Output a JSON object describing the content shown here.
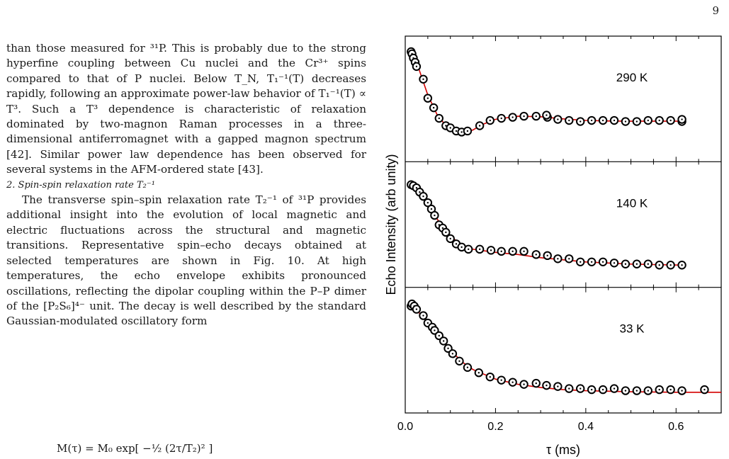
{
  "page": {
    "number": "9"
  },
  "text": {
    "para1": "than those measured for ³¹P. This is probably due to the strong hyperfine coupling between Cu nuclei and the Cr³⁺ spins compared to that of P nuclei. Below T_N, T₁⁻¹(T) decreases rapidly, following an approximate power-law behavior of T₁⁻¹(T) ∝ T³. Such a T³ dependence is characteristic of relaxation dominated by two-magnon Raman processes in a three-dimensional antiferromagnet with a gapped magnon spectrum [42]. Similar power law dependence has been observed for several systems in the AFM-ordered state [43].",
    "heading": "2.  Spin-spin relaxation rate T₂⁻¹",
    "para2": "The transverse spin–spin relaxation rate T₂⁻¹ of ³¹P provides additional insight into the evolution of local magnetic and electric fluctuations across the structural and magnetic transitions. Representative spin–echo decays obtained at selected temperatures are shown in Fig. 10. At high temperatures, the echo envelope exhibits pronounced oscillations, reflecting the dipolar coupling within the P–P dimer of the [P₂S₆]⁴⁻ unit. The decay is well described by the standard Gaussian-modulated oscillatory form",
    "equation_fragment": "M(τ) = M₀ exp[ −½ (2τ/T₂)² ]"
  },
  "chart_data": {
    "type": "scatter",
    "xlabel": "τ (ms)",
    "ylabel": "Echo Intensity (arb unity)",
    "xlim": [
      0,
      0.7
    ],
    "x_ticks": [
      "0.0",
      "0.2",
      "0.4",
      "0.6"
    ],
    "grid": false,
    "panels": [
      {
        "label": "290 K",
        "ylim": [
          0,
          1
        ],
        "points": [
          [
            0.013,
            0.96
          ],
          [
            0.015,
            0.94
          ],
          [
            0.018,
            0.9
          ],
          [
            0.022,
            0.86
          ],
          [
            0.025,
            0.82
          ],
          [
            0.04,
            0.7
          ],
          [
            0.05,
            0.52
          ],
          [
            0.063,
            0.43
          ],
          [
            0.075,
            0.33
          ],
          [
            0.09,
            0.26
          ],
          [
            0.1,
            0.24
          ],
          [
            0.113,
            0.21
          ],
          [
            0.125,
            0.2
          ],
          [
            0.138,
            0.21
          ],
          [
            0.165,
            0.26
          ],
          [
            0.188,
            0.31
          ],
          [
            0.213,
            0.33
          ],
          [
            0.238,
            0.34
          ],
          [
            0.263,
            0.35
          ],
          [
            0.29,
            0.35
          ],
          [
            0.315,
            0.34
          ],
          [
            0.313,
            0.36
          ],
          [
            0.338,
            0.32
          ],
          [
            0.363,
            0.31
          ],
          [
            0.388,
            0.3
          ],
          [
            0.413,
            0.31
          ],
          [
            0.438,
            0.31
          ],
          [
            0.463,
            0.31
          ],
          [
            0.488,
            0.3
          ],
          [
            0.513,
            0.3
          ],
          [
            0.538,
            0.31
          ],
          [
            0.563,
            0.31
          ],
          [
            0.588,
            0.31
          ],
          [
            0.613,
            0.3
          ],
          [
            0.613,
            0.32
          ]
        ],
        "fit": [
          [
            0.01,
            0.97
          ],
          [
            0.03,
            0.8
          ],
          [
            0.05,
            0.55
          ],
          [
            0.07,
            0.37
          ],
          [
            0.09,
            0.26
          ],
          [
            0.11,
            0.21
          ],
          [
            0.13,
            0.2
          ],
          [
            0.15,
            0.22
          ],
          [
            0.17,
            0.27
          ],
          [
            0.2,
            0.32
          ],
          [
            0.25,
            0.35
          ],
          [
            0.3,
            0.345
          ],
          [
            0.35,
            0.325
          ],
          [
            0.4,
            0.31
          ],
          [
            0.45,
            0.305
          ],
          [
            0.5,
            0.303
          ],
          [
            0.55,
            0.303
          ],
          [
            0.615,
            0.303
          ]
        ]
      },
      {
        "label": "140 K",
        "ylim": [
          0,
          1
        ],
        "points": [
          [
            0.013,
            0.89
          ],
          [
            0.018,
            0.88
          ],
          [
            0.025,
            0.86
          ],
          [
            0.032,
            0.82
          ],
          [
            0.04,
            0.78
          ],
          [
            0.05,
            0.72
          ],
          [
            0.058,
            0.66
          ],
          [
            0.065,
            0.6
          ],
          [
            0.075,
            0.51
          ],
          [
            0.083,
            0.48
          ],
          [
            0.09,
            0.44
          ],
          [
            0.1,
            0.38
          ],
          [
            0.113,
            0.33
          ],
          [
            0.125,
            0.3
          ],
          [
            0.14,
            0.28
          ],
          [
            0.165,
            0.28
          ],
          [
            0.19,
            0.27
          ],
          [
            0.213,
            0.26
          ],
          [
            0.238,
            0.26
          ],
          [
            0.263,
            0.26
          ],
          [
            0.29,
            0.23
          ],
          [
            0.315,
            0.22
          ],
          [
            0.338,
            0.19
          ],
          [
            0.363,
            0.19
          ],
          [
            0.388,
            0.16
          ],
          [
            0.413,
            0.16
          ],
          [
            0.438,
            0.16
          ],
          [
            0.463,
            0.15
          ],
          [
            0.488,
            0.14
          ],
          [
            0.513,
            0.14
          ],
          [
            0.538,
            0.14
          ],
          [
            0.563,
            0.13
          ],
          [
            0.588,
            0.13
          ],
          [
            0.613,
            0.13
          ]
        ],
        "fit": [
          [
            0.01,
            0.9
          ],
          [
            0.03,
            0.83
          ],
          [
            0.05,
            0.71
          ],
          [
            0.07,
            0.57
          ],
          [
            0.09,
            0.45
          ],
          [
            0.11,
            0.37
          ],
          [
            0.13,
            0.31
          ],
          [
            0.15,
            0.28
          ],
          [
            0.2,
            0.25
          ],
          [
            0.25,
            0.23
          ],
          [
            0.3,
            0.2
          ],
          [
            0.35,
            0.18
          ],
          [
            0.4,
            0.16
          ],
          [
            0.45,
            0.15
          ],
          [
            0.5,
            0.14
          ],
          [
            0.55,
            0.135
          ],
          [
            0.615,
            0.13
          ]
        ]
      },
      {
        "label": "33 K",
        "ylim": [
          0,
          1
        ],
        "points": [
          [
            0.013,
            0.93
          ],
          [
            0.015,
            0.95
          ],
          [
            0.02,
            0.93
          ],
          [
            0.025,
            0.9
          ],
          [
            0.04,
            0.84
          ],
          [
            0.05,
            0.77
          ],
          [
            0.06,
            0.73
          ],
          [
            0.065,
            0.7
          ],
          [
            0.075,
            0.65
          ],
          [
            0.085,
            0.6
          ],
          [
            0.095,
            0.53
          ],
          [
            0.105,
            0.48
          ],
          [
            0.12,
            0.41
          ],
          [
            0.138,
            0.35
          ],
          [
            0.163,
            0.3
          ],
          [
            0.188,
            0.26
          ],
          [
            0.213,
            0.23
          ],
          [
            0.238,
            0.21
          ],
          [
            0.263,
            0.19
          ],
          [
            0.29,
            0.2
          ],
          [
            0.313,
            0.18
          ],
          [
            0.338,
            0.17
          ],
          [
            0.363,
            0.15
          ],
          [
            0.388,
            0.15
          ],
          [
            0.413,
            0.14
          ],
          [
            0.438,
            0.14
          ],
          [
            0.463,
            0.15
          ],
          [
            0.488,
            0.13
          ],
          [
            0.513,
            0.13
          ],
          [
            0.538,
            0.13
          ],
          [
            0.563,
            0.14
          ],
          [
            0.588,
            0.14
          ],
          [
            0.613,
            0.13
          ],
          [
            0.663,
            0.14
          ]
        ],
        "fit": [
          [
            0.01,
            0.95
          ],
          [
            0.03,
            0.87
          ],
          [
            0.05,
            0.77
          ],
          [
            0.07,
            0.67
          ],
          [
            0.09,
            0.57
          ],
          [
            0.11,
            0.47
          ],
          [
            0.13,
            0.39
          ],
          [
            0.15,
            0.33
          ],
          [
            0.2,
            0.24
          ],
          [
            0.25,
            0.19
          ],
          [
            0.3,
            0.16
          ],
          [
            0.35,
            0.14
          ],
          [
            0.4,
            0.13
          ],
          [
            0.5,
            0.12
          ],
          [
            0.6,
            0.115
          ],
          [
            0.7,
            0.115
          ]
        ]
      }
    ],
    "colors": {
      "markers": "#000000",
      "fit": "#d40000"
    }
  }
}
